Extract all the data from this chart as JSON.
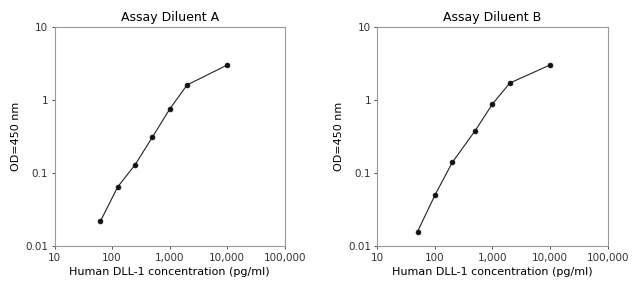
{
  "panel_a": {
    "title": "Assay Diluent A",
    "x": [
      62.5,
      125,
      250,
      500,
      1000,
      2000,
      10000
    ],
    "y": [
      0.022,
      0.065,
      0.13,
      0.31,
      0.75,
      1.6,
      3.0
    ]
  },
  "panel_b": {
    "title": "Assay Diluent B",
    "x": [
      50,
      100,
      200,
      500,
      1000,
      2000,
      10000
    ],
    "y": [
      0.016,
      0.05,
      0.14,
      0.38,
      0.88,
      1.7,
      3.0
    ]
  },
  "xlabel": "Human DLL-1 concentration (pg/ml)",
  "ylabel": "OD=450 nm",
  "xlim": [
    10,
    100000
  ],
  "ylim": [
    0.01,
    10
  ],
  "xticks": [
    10,
    100,
    1000,
    10000,
    100000
  ],
  "xticklabels": [
    "10",
    "100",
    "1,000",
    "10,000",
    "100,000"
  ],
  "yticks": [
    0.01,
    0.1,
    1,
    10
  ],
  "yticklabels": [
    "0.01",
    "0.1",
    "1",
    "10"
  ],
  "line_color": "#222222",
  "marker_color": "#111111",
  "title_fontsize": 9,
  "label_fontsize": 8,
  "tick_fontsize": 7.5,
  "bg_color": "#ffffff",
  "plot_bg_color": "#ffffff",
  "spine_color": "#999999"
}
